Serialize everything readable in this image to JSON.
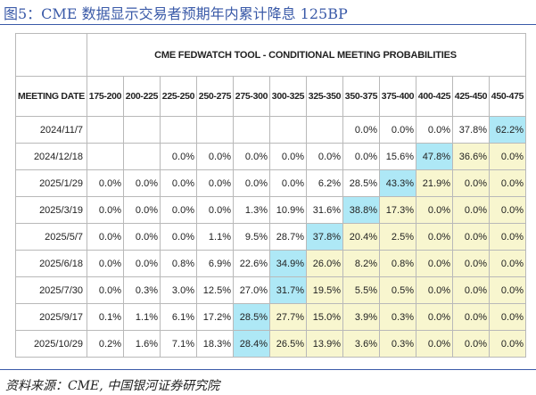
{
  "figure": {
    "title": "图5：CME 数据显示交易者预期年内累计降息 125BP",
    "source": "资料来源：CME, 中国银河证券研究院"
  },
  "chart_data": {
    "type": "table",
    "title": "CME FEDWATCH TOOL - CONDITIONAL MEETING PROBABILITIES",
    "row_header_label": "MEETING DATE",
    "columns": [
      "175-200",
      "200-225",
      "225-250",
      "250-275",
      "275-300",
      "300-325",
      "325-350",
      "350-375",
      "375-400",
      "400-425",
      "425-450",
      "450-475"
    ],
    "rows": [
      {
        "date": "2024/11/7",
        "values": [
          "",
          "",
          "",
          "",
          "",
          "",
          "",
          "0.0%",
          "0.0%",
          "0.0%",
          "37.8%",
          "62.2%"
        ],
        "highlight": 11
      },
      {
        "date": "2024/12/18",
        "values": [
          "",
          "",
          "0.0%",
          "0.0%",
          "0.0%",
          "0.0%",
          "0.0%",
          "0.0%",
          "15.6%",
          "47.8%",
          "36.6%",
          "0.0%"
        ],
        "highlight": 9
      },
      {
        "date": "2025/1/29",
        "values": [
          "0.0%",
          "0.0%",
          "0.0%",
          "0.0%",
          "0.0%",
          "0.0%",
          "6.2%",
          "28.5%",
          "43.3%",
          "21.9%",
          "0.0%",
          "0.0%"
        ],
        "highlight": 8
      },
      {
        "date": "2025/3/19",
        "values": [
          "0.0%",
          "0.0%",
          "0.0%",
          "0.0%",
          "1.3%",
          "10.9%",
          "31.6%",
          "38.8%",
          "17.3%",
          "0.0%",
          "0.0%",
          "0.0%"
        ],
        "highlight": 7
      },
      {
        "date": "2025/5/7",
        "values": [
          "0.0%",
          "0.0%",
          "0.0%",
          "1.1%",
          "9.5%",
          "28.7%",
          "37.8%",
          "20.4%",
          "2.5%",
          "0.0%",
          "0.0%",
          "0.0%"
        ],
        "highlight": 6
      },
      {
        "date": "2025/6/18",
        "values": [
          "0.0%",
          "0.0%",
          "0.8%",
          "6.9%",
          "22.6%",
          "34.9%",
          "26.0%",
          "8.2%",
          "0.8%",
          "0.0%",
          "0.0%",
          "0.0%"
        ],
        "highlight": 5
      },
      {
        "date": "2025/7/30",
        "values": [
          "0.0%",
          "0.3%",
          "3.0%",
          "12.5%",
          "27.0%",
          "31.7%",
          "19.5%",
          "5.5%",
          "0.5%",
          "0.0%",
          "0.0%",
          "0.0%"
        ],
        "highlight": 5
      },
      {
        "date": "2025/9/17",
        "values": [
          "0.1%",
          "1.1%",
          "6.1%",
          "17.2%",
          "28.5%",
          "27.7%",
          "15.0%",
          "3.9%",
          "0.3%",
          "0.0%",
          "0.0%",
          "0.0%"
        ],
        "highlight": 4
      },
      {
        "date": "2025/10/29",
        "values": [
          "0.2%",
          "1.6%",
          "7.1%",
          "18.3%",
          "28.4%",
          "26.5%",
          "13.9%",
          "3.6%",
          "0.3%",
          "0.0%",
          "0.0%",
          "0.0%"
        ],
        "highlight": 4
      }
    ],
    "colors": {
      "highlight": "#aee8f6",
      "shaded": "#f8f6cf",
      "blank": "#ffffff"
    }
  }
}
